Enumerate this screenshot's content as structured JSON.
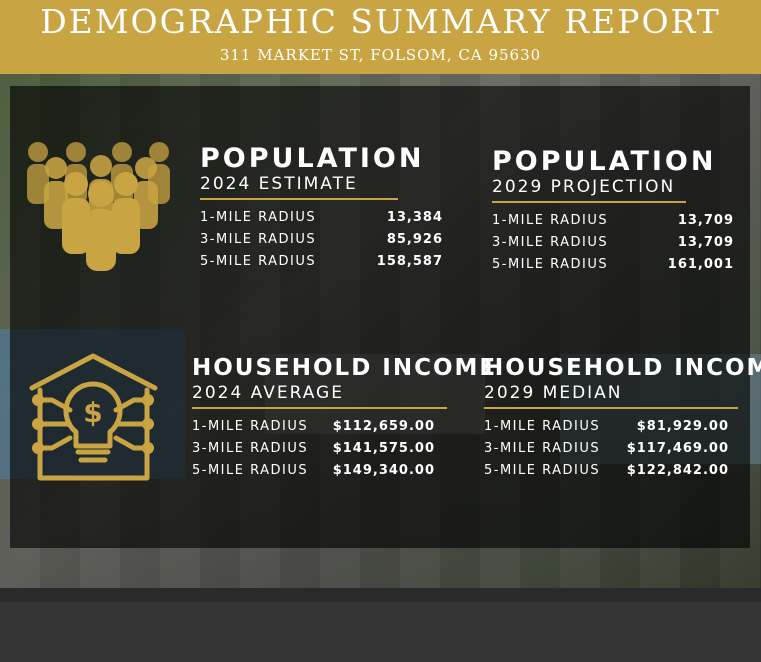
{
  "header": {
    "title": "DEMOGRAPHIC SUMMARY REPORT",
    "address": "311 MARKET ST, FOLSOM, CA 95630"
  },
  "colors": {
    "gold": "#c9a443",
    "overlay": "#000000"
  },
  "population_2024": {
    "heading": "POPULATION",
    "subheading": "2024 ESTIMATE",
    "rows": [
      {
        "label": "1-MILE RADIUS",
        "value": "13,384"
      },
      {
        "label": "3-MILE RADIUS",
        "value": "85,926"
      },
      {
        "label": "5-MILE RADIUS",
        "value": "158,587"
      }
    ]
  },
  "population_2029": {
    "heading": "POPULATION",
    "subheading": "2029 PROJECTION",
    "rows": [
      {
        "label": "1-MILE RADIUS",
        "value": "13,709"
      },
      {
        "label": "3-MILE RADIUS",
        "value": "13,709"
      },
      {
        "label": "5-MILE RADIUS",
        "value": "161,001"
      }
    ]
  },
  "income_2024": {
    "heading": "HOUSEHOLD INCOME",
    "subheading": "2024 AVERAGE",
    "rows": [
      {
        "label": "1-MILE RADIUS",
        "value": "$112,659.00"
      },
      {
        "label": "3-MILE RADIUS",
        "value": "$141,575.00"
      },
      {
        "label": "5-MILE RADIUS",
        "value": "$149,340.00"
      }
    ]
  },
  "income_2029": {
    "heading": "HOUSEHOLD INCOME",
    "subheading": "2029 MEDIAN",
    "rows": [
      {
        "label": "1-MILE RADIUS",
        "value": "$81,929.00"
      },
      {
        "label": "3-MILE RADIUS",
        "value": "$117,469.00"
      },
      {
        "label": "5-MILE RADIUS",
        "value": "$122,842.00"
      }
    ]
  },
  "icons": {
    "population": "people-group-icon",
    "income": "lightbulb-dollar-icon"
  }
}
